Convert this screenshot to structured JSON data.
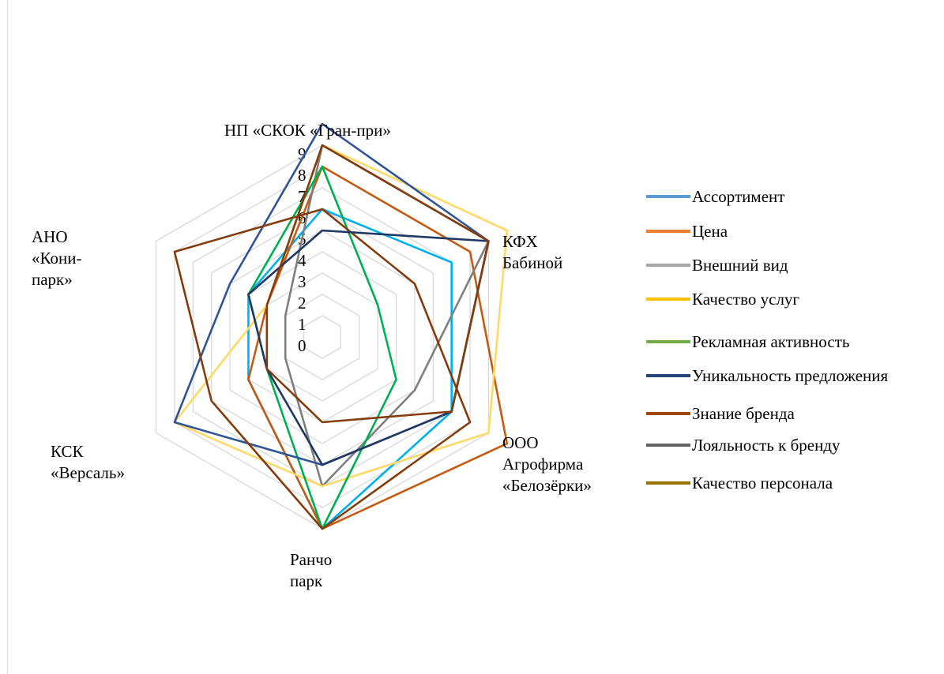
{
  "chart_data": {
    "type": "radar",
    "categories": [
      "НП  «СКОК «Гран-при»",
      "КФХ Бабиной",
      "ООО Агрофирма «Белозёрки»",
      "Ранчо парк",
      "КСК «Версаль»",
      "АНО «Кони-парк»"
    ],
    "category_labels": [
      "НП  «СКОК «Гран-при»",
      "КФХ\nБабиной",
      "ООО\nАгрофирма\n«Белозёрки»",
      "Ранчо\nпарк",
      "КСК\n«Версаль»",
      "АНО\n«Кони-\nпарк»"
    ],
    "radial_ticks": [
      "0",
      "1",
      "2",
      "3",
      "4",
      "5",
      "6",
      "7",
      "8",
      "9"
    ],
    "rlim": [
      0,
      9
    ],
    "legend_position": "right",
    "series": [
      {
        "name": "Ассортимент",
        "color": "#00b0f0",
        "legend_color": "#5b9bd5",
        "values": [
          6,
          7,
          7,
          9,
          4,
          4
        ]
      },
      {
        "name": "Цена",
        "color": "#c55a11",
        "legend_color": "#ed7d31",
        "values": [
          8,
          8,
          10,
          9,
          4,
          3
        ]
      },
      {
        "name": "Внешний вид",
        "color": "#7f7f7f",
        "legend_color": "#a5a5a5",
        "values": [
          9,
          9,
          5,
          7,
          2,
          2
        ]
      },
      {
        "name": "Качество услуг",
        "color": "#ffd966",
        "legend_color": "#ffc000",
        "values": [
          9,
          10,
          9,
          7,
          8,
          3
        ]
      },
      {
        "name": "Рекламная активность",
        "color": "#00b050",
        "legend_color": "#70ad47",
        "values": [
          8,
          3,
          4,
          9,
          3,
          4
        ]
      },
      {
        "name": "Уникальность предложения",
        "color": "#2f5597",
        "legend_color": "#264478",
        "values": [
          10,
          9,
          7,
          6,
          8,
          5
        ]
      },
      {
        "name": "Знание бренда",
        "color": "#843c0c",
        "legend_color": "#9e480e",
        "values": [
          6,
          5,
          8,
          9,
          6,
          8
        ]
      },
      {
        "name": "Лояльность к бренду",
        "color": "#1f3864",
        "legend_color": "#636363",
        "values": [
          5,
          9,
          7,
          6,
          3,
          4
        ]
      },
      {
        "name": "Качество персонала",
        "color": "#843c0c",
        "legend_color": "#997300",
        "values": [
          9,
          9,
          7,
          4,
          3,
          3
        ]
      }
    ]
  }
}
